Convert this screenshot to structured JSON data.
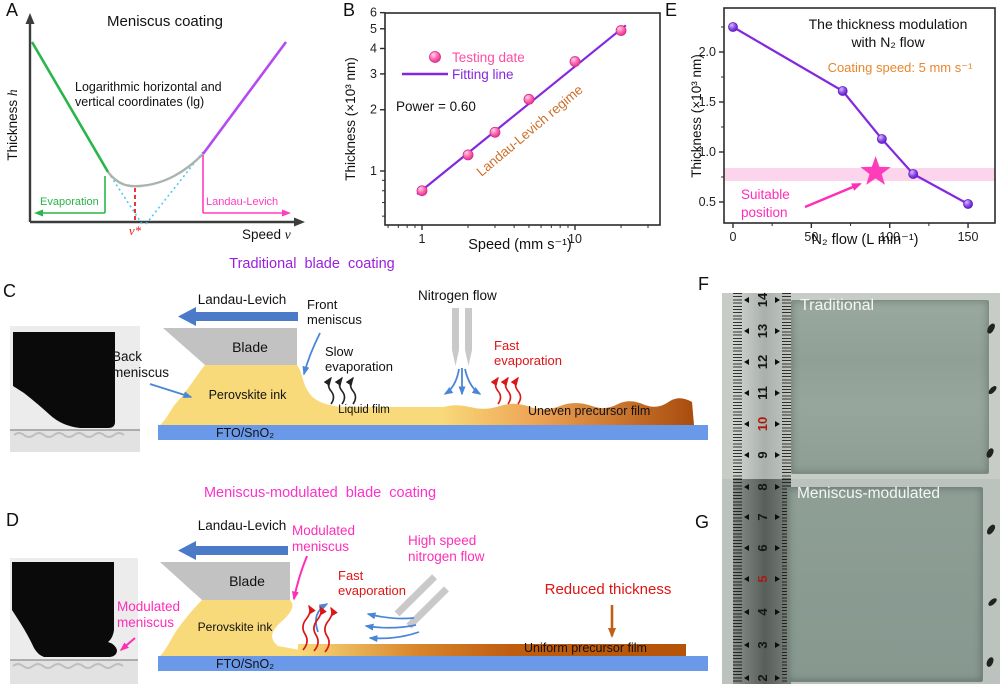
{
  "panels": {
    "A": {
      "label": "A",
      "title": "Meniscus coating",
      "note": "Logarithmic horizontal and\nvertical coordinates (lg)",
      "ylabel_word": "Thickness ",
      "ylabel_var": "h",
      "xlabel_word": "Speed ",
      "xlabel_var": "ν",
      "evaporation": "Evaporation",
      "landau": "Landau-Levich",
      "vstar": "ν*"
    },
    "B": {
      "label": "B"
    },
    "C": {
      "label": "C",
      "title": "Traditional blade coating",
      "landau": "Landau-Levich",
      "back_meniscus": "Back\nmeniscus",
      "blade": "Blade",
      "front_meniscus": "Front\nmeniscus",
      "slow_evaporation": "Slow\nevaporation",
      "nitrogen_flow": "Nitrogen flow",
      "fast_evaporation": "Fast\nevaporation",
      "perovskite_ink": "Perovskite ink",
      "liquid_film": "Liquid film",
      "uneven_film": "Uneven precursor film",
      "substrate": "FTO/SnO₂"
    },
    "D": {
      "label": "D",
      "title": "Meniscus-modulated blade coating",
      "landau": "Landau-Levich",
      "blade": "Blade",
      "modulated_meniscus_photo": "Modulated\nmeniscus",
      "modulated_meniscus": "Modulated\nmeniscus",
      "fast_evaporation": "Fast\nevaporation",
      "high_speed": "High speed\nnitrogen flow",
      "perovskite_ink": "Perovskite ink",
      "reduced_thickness": "Reduced thickness",
      "uniform_film": "Uniform precursor film",
      "substrate": "FTO/SnO₂"
    },
    "E": {
      "label": "E"
    },
    "F": {
      "label": "F",
      "caption": "Traditional",
      "ruler_numbers": [
        "14",
        "13",
        "12",
        "11",
        "10",
        "9"
      ],
      "ruler_red": "10"
    },
    "G": {
      "label": "G",
      "caption": "Meniscus-modulated",
      "ruler_numbers": [
        "8",
        "7",
        "6",
        "5",
        "4",
        "3",
        "2"
      ],
      "ruler_red": "5"
    }
  },
  "chart_data": [
    {
      "panel": "A",
      "type": "line",
      "title": "Meniscus coating",
      "note": "Logarithmic horizontal and vertical coordinates (lg)",
      "xlabel": "Speed ν",
      "ylabel": "Thickness h",
      "regimes": [
        "Evaporation",
        "Landau-Levich"
      ],
      "critical_speed_label": "ν*",
      "description": "Schematic V-shaped thickness vs speed curve on log-log axes"
    },
    {
      "panel": "B",
      "type": "scatter",
      "xscale": "log",
      "yscale": "log",
      "series": [
        {
          "name": "Testing date",
          "x": [
            1,
            2,
            3,
            5,
            10,
            20
          ],
          "y": [
            0.8,
            1.2,
            1.55,
            2.25,
            3.45,
            4.9
          ]
        },
        {
          "name": "Fitting line",
          "fit_power": 0.6,
          "x": [
            0.93,
            21.5
          ],
          "y": [
            0.77,
            5.2
          ]
        }
      ],
      "xlim": [
        0.57,
        36
      ],
      "ylim": [
        0.54,
        6.0
      ],
      "xticks": [
        1,
        10
      ],
      "yticks": [
        1,
        2,
        3,
        4,
        5,
        6
      ],
      "xminor": [
        0.6,
        0.7,
        0.8,
        0.9,
        2,
        3,
        4,
        5,
        6,
        7,
        8,
        9,
        20,
        30
      ],
      "yminor": [
        0.6,
        0.7,
        0.8,
        0.9
      ],
      "xlabel": "Speed (mm s⁻¹)",
      "ylabel": "Thickness (×10³ nm)",
      "annotations": [
        "Power = 0.60",
        "Landau-Levich regime"
      ]
    },
    {
      "panel": "E",
      "type": "line",
      "title": "The thickness modulation\nwith N₂ flow",
      "subtitle": "Coating speed: 5 mm s⁻¹",
      "x": [
        0,
        70,
        95,
        115,
        150
      ],
      "y": [
        2.25,
        1.61,
        1.13,
        0.78,
        0.48
      ],
      "xlim": [
        -6,
        167
      ],
      "ylim": [
        0.29,
        2.44
      ],
      "xticks": [
        0,
        50,
        100,
        150
      ],
      "yticks": [
        "0.5",
        "1.0",
        "1.5",
        "2.0"
      ],
      "xminor": [
        25,
        75,
        125
      ],
      "yminor": [
        0.75,
        1.25,
        1.75,
        2.25
      ],
      "xlabel": "N₂ flow (L min⁻¹)",
      "ylabel": "Thickness (×10³ nm)",
      "band": {
        "y0": 0.71,
        "y1": 0.84
      },
      "star": {
        "x": 91,
        "y": 0.8,
        "label": "Suitable\nposition"
      }
    }
  ],
  "colors": {
    "fit_purple": "#8428e0",
    "point_pink": "#ff4da6",
    "magenta": "#ff2db8",
    "orange": "#e8862c",
    "regime_orange": "#cc6e28",
    "red": "#dd1515",
    "green": "#2ab54a",
    "arrow_blue": "#4a7ac8",
    "thin_blue": "#4a86d8",
    "substrate_blue": "#6b99ea",
    "ink_yellow": "#f9da7a",
    "film_brown": "#bf5c10",
    "title_purple": "#9a1fe0",
    "dotted_cyan": "#52c8f2",
    "dashed_red": "#e82020"
  }
}
